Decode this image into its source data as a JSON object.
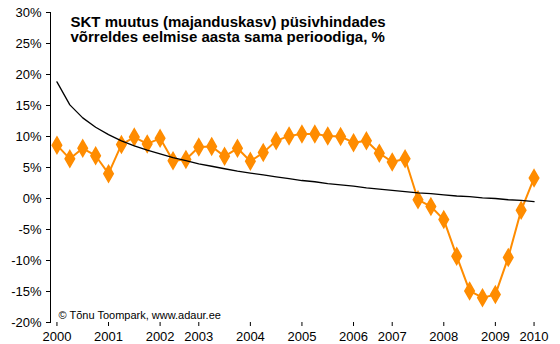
{
  "chart_data": {
    "type": "line",
    "title": "SKT muutus (majanduskasv) püsivhindades\nvõrreldes eelmise aasta sama perioodiga, %",
    "annotation": "© Tõnu Toompark, www.adaur.ee",
    "categories": [
      "2000",
      null,
      null,
      null,
      "2001",
      null,
      null,
      null,
      "2002",
      null,
      null,
      "2003",
      null,
      null,
      null,
      "2004",
      null,
      null,
      null,
      "2005",
      null,
      null,
      null,
      "2006",
      null,
      null,
      "2007",
      null,
      null,
      null,
      "2008",
      null,
      null,
      null,
      "2009",
      null,
      null,
      "2010"
    ],
    "series": [
      {
        "color": "#ff8c00",
        "marker": "diamond",
        "type": "line",
        "values": [
          8.6,
          6.4,
          8.1,
          6.9,
          4.0,
          8.7,
          9.9,
          8.8,
          9.7,
          6.1,
          6.3,
          8.3,
          8.4,
          6.8,
          8.1,
          6.0,
          7.4,
          9.3,
          10.1,
          10.4,
          10.4,
          10.1,
          10.0,
          9.0,
          9.3,
          7.3,
          5.9,
          6.4,
          -0.2,
          -1.3,
          -3.4,
          -9.3,
          -14.9,
          -16.0,
          -15.5,
          -9.5,
          -1.9,
          3.3
        ]
      },
      {
        "color": "#000000",
        "type": "line",
        "values": [
          18.8,
          15.1,
          13.0,
          11.5,
          10.3,
          9.3,
          8.5,
          7.8,
          7.2,
          6.6,
          6.1,
          5.6,
          5.2,
          4.8,
          4.4,
          4.1,
          3.8,
          3.5,
          3.2,
          2.9,
          2.7,
          2.4,
          2.2,
          2.0,
          1.7,
          1.5,
          1.3,
          1.1,
          0.9,
          0.8,
          0.6,
          0.4,
          0.3,
          0.1,
          0.0,
          -0.2,
          -0.3,
          -0.5
        ]
      }
    ],
    "ylim": [
      -20,
      30
    ],
    "yticks": [
      {
        "value": -20,
        "label": "-20%"
      },
      {
        "value": -15,
        "label": "-15%"
      },
      {
        "value": -10,
        "label": "-10%"
      },
      {
        "value": -5,
        "label": "-5%"
      },
      {
        "value": 0,
        "label": "0%"
      },
      {
        "value": 5,
        "label": "5%"
      },
      {
        "value": 10,
        "label": "10%"
      },
      {
        "value": 15,
        "label": "15%"
      },
      {
        "value": 20,
        "label": "20%"
      },
      {
        "value": 25,
        "label": "25%"
      },
      {
        "value": 30,
        "label": "30%"
      }
    ],
    "grid": false
  }
}
